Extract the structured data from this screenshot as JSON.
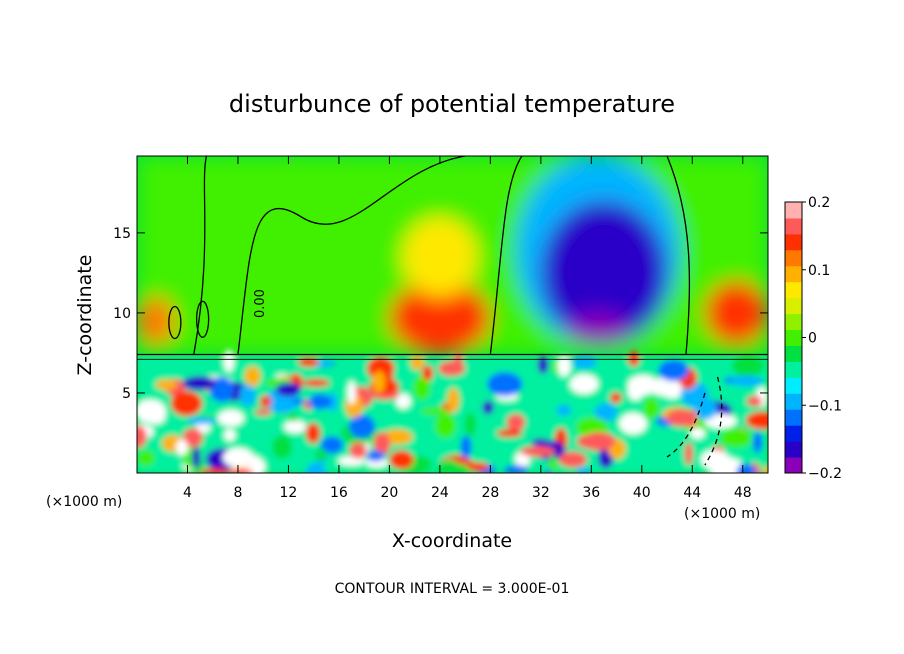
{
  "chart_data": {
    "type": "heatmap",
    "title": "disturbunce of potential temperature",
    "xlabel": "X-coordinate",
    "ylabel": "Z-coordinate",
    "x_unit_label": "(×1000 m)",
    "y_unit_label": "(×1000 m)",
    "x_ticks": [
      4,
      8,
      12,
      16,
      20,
      24,
      28,
      32,
      36,
      40,
      44,
      48
    ],
    "y_ticks": [
      5,
      10,
      15
    ],
    "xlim": [
      0,
      50
    ],
    "ylim": [
      0,
      19.8
    ],
    "contour_label": "0.00",
    "contour_interval_text": "CONTOUR INTERVAL = 3.000E-01",
    "colorbar": {
      "ticks": [
        0.2,
        0.1,
        0,
        -0.1,
        -0.2
      ],
      "tick_labels": [
        "0.2",
        "0.1",
        "0",
        "−0.1",
        "−0.2"
      ],
      "vmin": -0.2,
      "vmax": 0.2,
      "colors": [
        "#8a00b8",
        "#2a00c8",
        "#0020e8",
        "#0070ff",
        "#00b4ff",
        "#00ecff",
        "#00f0a0",
        "#00e040",
        "#40f000",
        "#90f000",
        "#d8f000",
        "#ffe800",
        "#ffb000",
        "#ff7800",
        "#ff3000",
        "#ff5a5a",
        "#ffb0b0"
      ]
    },
    "upper_layer_features": [
      {
        "x": [
          0,
          3
        ],
        "z": [
          8,
          11
        ],
        "value": 0.11,
        "note": "warm left edge"
      },
      {
        "x": [
          20,
          28
        ],
        "z": [
          7.4,
          12
        ],
        "value": 0.15,
        "note": "warm anomaly"
      },
      {
        "x": [
          21,
          27
        ],
        "z": [
          11,
          16
        ],
        "value": 0.08,
        "note": "warm plume"
      },
      {
        "x": [
          30,
          43
        ],
        "z": [
          8,
          19.8
        ],
        "value": -0.1,
        "note": "cool plume"
      },
      {
        "x": [
          32,
          42
        ],
        "z": [
          8,
          17
        ],
        "value": -0.16,
        "note": "cold core"
      },
      {
        "x": [
          34,
          39
        ],
        "z": [
          8,
          10
        ],
        "value": -0.2,
        "note": "coldest"
      },
      {
        "x": [
          45,
          50
        ],
        "z": [
          8,
          12
        ],
        "value": 0.13,
        "note": "warm right"
      }
    ]
  }
}
